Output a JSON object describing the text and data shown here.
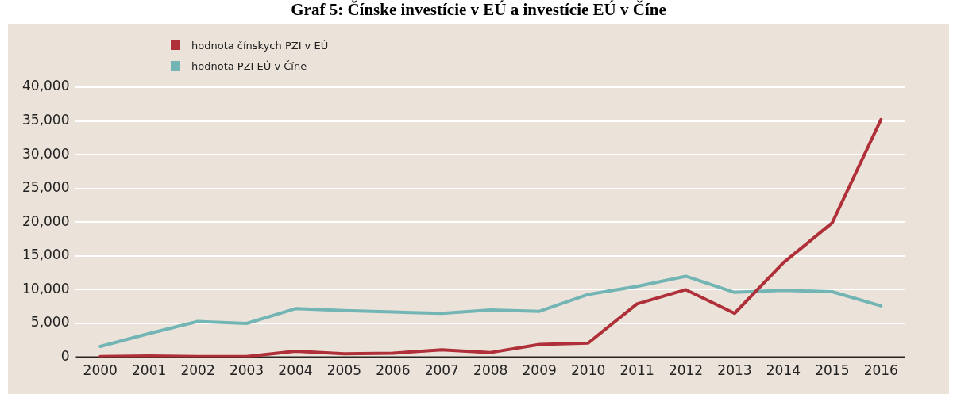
{
  "chart_data": {
    "type": "line",
    "title": "Graf 5: Čínske investície v EÚ a investície EÚ v Číne",
    "categories": [
      "2000",
      "2001",
      "2002",
      "2003",
      "2004",
      "2005",
      "2006",
      "2007",
      "2008",
      "2009",
      "2010",
      "2011",
      "2012",
      "2013",
      "2014",
      "2015",
      "2016"
    ],
    "series": [
      {
        "name": "hodnota čínskych PZI v EÚ",
        "color": "#b0303a",
        "values": [
          100,
          200,
          100,
          100,
          900,
          500,
          600,
          1100,
          700,
          1900,
          2100,
          7900,
          10000,
          6500,
          14000,
          19900,
          35200
        ]
      },
      {
        "name": "hodnota PZI EÚ v Číne",
        "color": "#72b5b4",
        "values": [
          1600,
          3500,
          5300,
          5000,
          7200,
          6900,
          6700,
          6500,
          7000,
          6800,
          9300,
          10500,
          12000,
          9600,
          9900,
          9700,
          7600
        ]
      }
    ],
    "ylim": [
      0,
      40000
    ],
    "yticks": [
      0,
      {
        "value": 5000,
        "label": "5,000"
      },
      {
        "value": 10000,
        "label": "10,000"
      },
      {
        "value": 15000,
        "label": "15,000"
      },
      {
        "value": 20000,
        "label": "20,000"
      },
      {
        "value": 25000,
        "label": "25,000"
      },
      {
        "value": 30000,
        "label": "30,000"
      },
      {
        "value": 35000,
        "label": "35,000"
      },
      {
        "value": 40000,
        "label": "40,000"
      }
    ],
    "grid": "y",
    "legend": "top left",
    "marker": "none",
    "line_style": "solid"
  }
}
